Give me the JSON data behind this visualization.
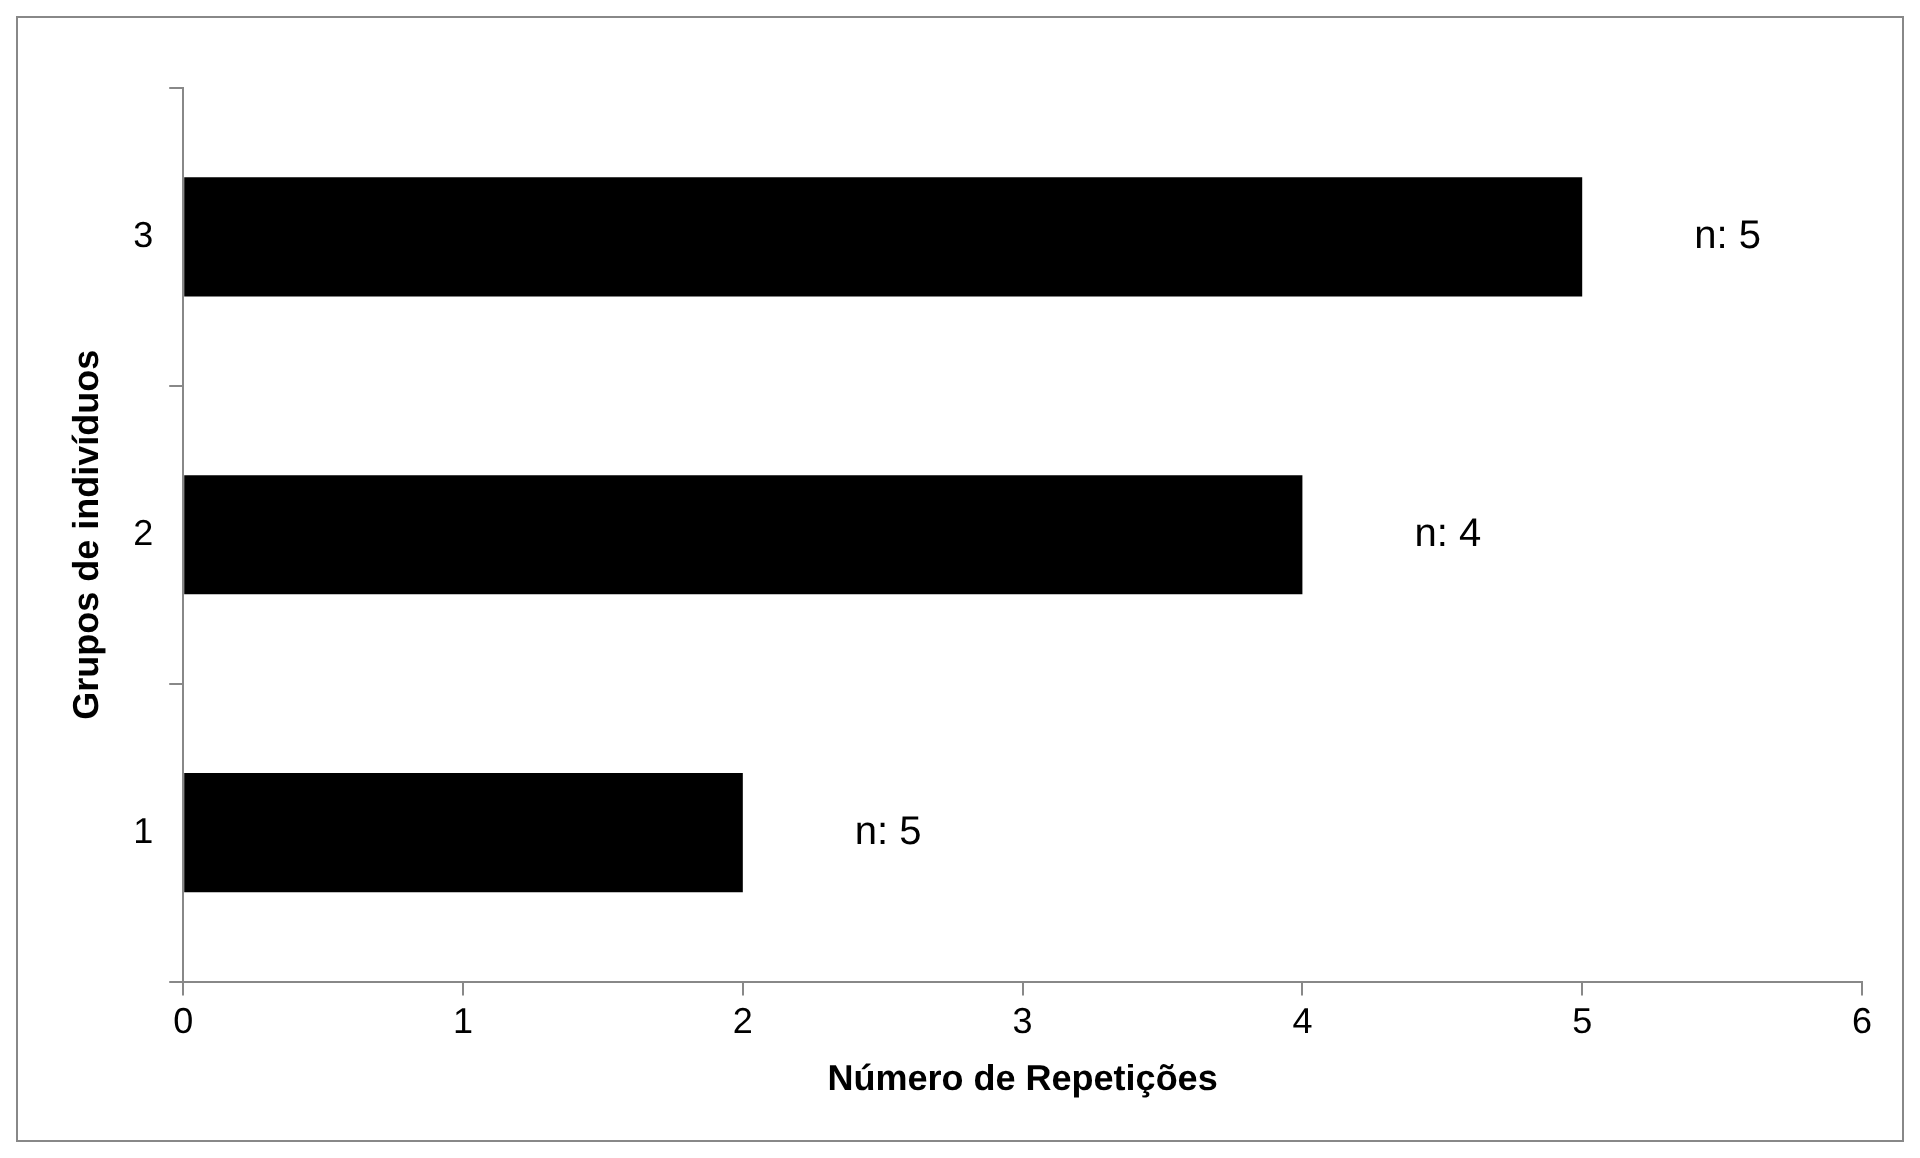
{
  "chart_data": {
    "type": "bar",
    "orientation": "horizontal",
    "xlabel": "Número de Repetições",
    "ylabel": "Grupos de indivíduos",
    "categories": [
      "3",
      "2",
      "1"
    ],
    "values": [
      5,
      4,
      2
    ],
    "color": "#000000",
    "xlim": [
      0,
      6
    ],
    "xticks": [
      0,
      1,
      2,
      3,
      4,
      5,
      6
    ],
    "grid": false,
    "legend": false,
    "annotations": [
      "n: 5",
      "n: 4",
      "n: 5"
    ]
  }
}
